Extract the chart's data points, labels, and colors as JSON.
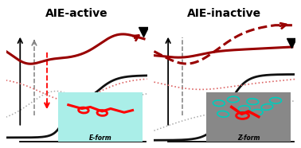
{
  "title_left": "AIE-active",
  "title_right": "AIE-inactive",
  "title_fontsize": 10,
  "bg_color": "#ffffff",
  "dark_red": "#990000",
  "gray_dot": "#aaaaaa",
  "pink_dot": "#dd6666",
  "black": "#111111"
}
